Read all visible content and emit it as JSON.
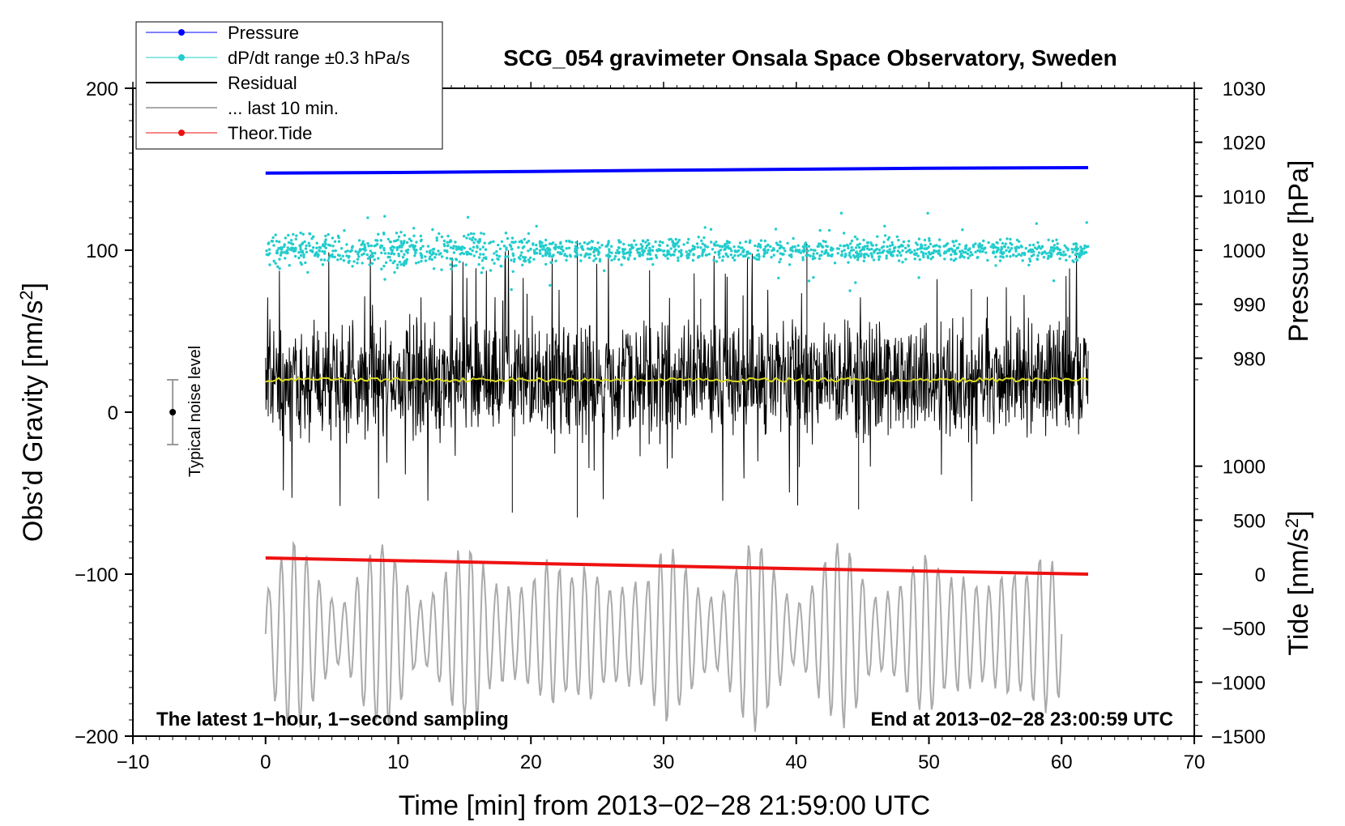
{
  "chart_data": {
    "type": "line",
    "title": "SCG_054 gravimeter Onsala Space Observatory, Sweden",
    "xlabel": "Time [min] from 2013−02−28 21:59:00 UTC",
    "ylabel_left": "Obs’d Gravity [nm/s",
    "ylabel_left_sup": "2",
    "ylabel_left_end": "]",
    "ylabel_pressure": "Pressure [hPa]",
    "ylabel_tide": "Tide [nm/s",
    "ylabel_tide_sup": "2",
    "ylabel_tide_end": "]",
    "xlim": [
      -10,
      70
    ],
    "ylim": [
      -200,
      200
    ],
    "x_ticks": [
      -10,
      0,
      10,
      20,
      30,
      40,
      50,
      60,
      70
    ],
    "x_tick_labels": [
      "−10",
      "0",
      "10",
      "20",
      "30",
      "40",
      "50",
      "60",
      "70"
    ],
    "y_ticks": [
      -200,
      -100,
      0,
      100,
      200
    ],
    "y_tick_labels": [
      "−200",
      "−100",
      "0",
      "100",
      "200"
    ],
    "pressure_axis": {
      "ticks": [
        980,
        990,
        1000,
        1010,
        1020,
        1030
      ],
      "tick_labels": [
        "980",
        "990",
        "1000",
        "1010",
        "1020",
        "1030"
      ],
      "mapping": "hPa 1000 at gravity 100, 10 hPa per 33.3 nm/s2"
    },
    "tide_axis": {
      "ticks": [
        -1500,
        -1000,
        -500,
        0,
        500,
        1000
      ],
      "tick_labels": [
        "−1500",
        "−1000",
        "−500",
        "0",
        "500",
        "1000"
      ],
      "mapping": "tide 0 at gravity -100, 500 nm/s2 per 33.3 nm/s2"
    },
    "series": [
      {
        "name": "Pressure",
        "color": "#0000ff",
        "unit": "hPa",
        "x": [
          0,
          10,
          20,
          30,
          40,
          50,
          62
        ],
        "values": [
          1014.3,
          1014.4,
          1014.6,
          1014.8,
          1015.0,
          1015.2,
          1015.3
        ]
      },
      {
        "name": "dP/dt range ±0.3 hPa/s",
        "color": "#22cccc",
        "center": 100,
        "spread": 8
      },
      {
        "name": "Residual",
        "color": "#000000",
        "center": 20,
        "spread": 30
      },
      {
        "name": "... last 10 min.",
        "color": "#aaaaaa",
        "x_start": 0,
        "x_end": 60
      },
      {
        "name": "Theor.Tide",
        "color": "#ee1111",
        "unit": "nm/s2",
        "x": [
          0,
          20,
          40,
          62
        ],
        "values": [
          150,
          100,
          50,
          0
        ]
      },
      {
        "name": "Mean",
        "color": "#dddd22",
        "center": 20
      }
    ],
    "legend": {
      "position": "top-left",
      "entries": [
        {
          "label": "Pressure",
          "color": "#0000ff",
          "marker": true
        },
        {
          "label": "dP/dt range ±0.3 hPa/s",
          "color": "#22cccc",
          "marker": true
        },
        {
          "label": "Residual",
          "color": "#000000",
          "marker": false
        },
        {
          "label": "... last 10 min.",
          "color": "#aaaaaa",
          "marker": false
        },
        {
          "label": "Theor.Tide",
          "color": "#ee1111",
          "marker": true
        }
      ]
    },
    "annotations": {
      "bottom_left": "The latest 1−hour, 1−second sampling",
      "bottom_right": "End at 2013−02−28 23:00:59 UTC",
      "noise_label": "Typical noise level",
      "noise_bar": {
        "x": -7,
        "center": 0,
        "half_range": 20
      }
    }
  }
}
